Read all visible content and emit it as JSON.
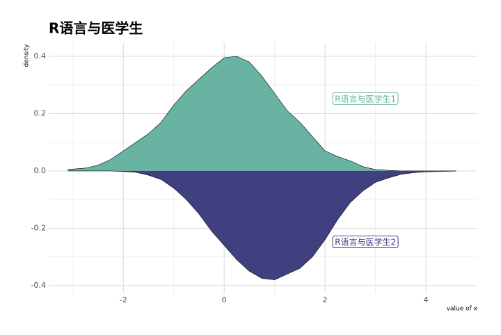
{
  "chart_data": {
    "type": "area",
    "title": "R语言与医学生",
    "xlabel": "value of x",
    "ylabel": "density",
    "x": [
      -3.1,
      -2.75,
      -2.5,
      -2.25,
      -2,
      -1.75,
      -1.5,
      -1.25,
      -1,
      -0.75,
      -0.5,
      -0.25,
      0,
      0.25,
      0.5,
      0.75,
      1,
      1.25,
      1.5,
      1.75,
      2,
      2.25,
      2.5,
      2.75,
      3,
      3.25,
      3.5,
      3.75,
      4,
      4.25,
      4.5,
      4.6
    ],
    "series": [
      {
        "name": "R语言与医学生1",
        "color": "#69b3a2",
        "values": [
          0.005,
          0.01,
          0.02,
          0.04,
          0.07,
          0.1,
          0.13,
          0.17,
          0.23,
          0.28,
          0.32,
          0.36,
          0.395,
          0.4,
          0.38,
          0.33,
          0.27,
          0.21,
          0.17,
          0.12,
          0.07,
          0.05,
          0.035,
          0.015,
          0.005,
          0.002,
          0,
          0,
          0,
          0,
          0,
          0
        ]
      },
      {
        "name": "R语言与医学生2",
        "color": "#404080",
        "values": [
          0,
          0,
          0,
          0,
          -0.002,
          -0.005,
          -0.015,
          -0.03,
          -0.06,
          -0.1,
          -0.15,
          -0.21,
          -0.26,
          -0.31,
          -0.35,
          -0.375,
          -0.38,
          -0.36,
          -0.34,
          -0.3,
          -0.24,
          -0.17,
          -0.11,
          -0.07,
          -0.04,
          -0.025,
          -0.012,
          -0.006,
          -0.003,
          -0.002,
          -0.001,
          0
        ]
      }
    ],
    "annotations": [
      {
        "text": "R语言与医学生1",
        "x": 2.8,
        "y": 0.25,
        "color": "#69b3a2"
      },
      {
        "text": "R语言与医学生2",
        "x": 2.8,
        "y": -0.25,
        "color": "#404080"
      }
    ],
    "xlim": [
      -3.48,
      5.02
    ],
    "ylim": [
      -0.427,
      0.446
    ],
    "xticks": [
      -2,
      0,
      2,
      4
    ],
    "yticks": [
      -0.4,
      -0.2,
      0.0,
      0.2,
      0.4
    ],
    "minor_xticks": [
      -3,
      -1,
      1,
      3
    ],
    "minor_yticks": [
      -0.3,
      -0.1,
      0.1,
      0.3
    ],
    "grid": true
  }
}
